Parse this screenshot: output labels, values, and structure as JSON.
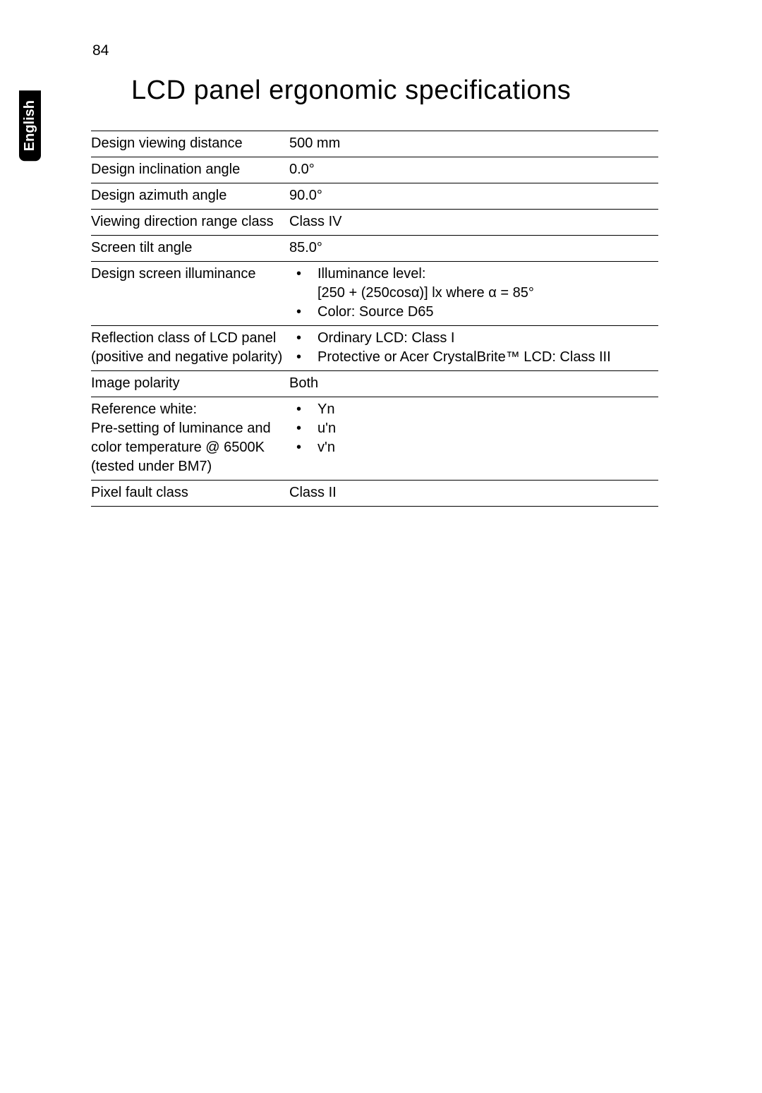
{
  "page_number": "84",
  "language_tab": "English",
  "title": "LCD panel ergonomic specifications",
  "colors": {
    "background": "#ffffff",
    "text": "#000000",
    "tab_bg": "#000000",
    "tab_text": "#ffffff",
    "border": "#000000"
  },
  "typography": {
    "title_fontsize": 38,
    "body_fontsize": 20,
    "tab_fontsize": 20,
    "page_number_fontsize": 21
  },
  "rows": [
    {
      "label": "Design viewing distance",
      "value_type": "text",
      "value": "500 mm"
    },
    {
      "label": "Design inclination angle",
      "value_type": "text",
      "value": "0.0°"
    },
    {
      "label": "Design azimuth angle",
      "value_type": "text",
      "value": "90.0°"
    },
    {
      "label": "Viewing direction range class",
      "value_type": "text",
      "value": "Class IV"
    },
    {
      "label": "Screen tilt angle",
      "value_type": "text",
      "value": "85.0°"
    },
    {
      "label": "Design screen illuminance",
      "value_type": "bullets",
      "bullets": [
        {
          "text": "Illuminance level:",
          "sub": "[250 + (250cosα)] lx where α = 85°"
        },
        {
          "text": "Color: Source D65"
        }
      ]
    },
    {
      "label": "Reflection class of LCD panel (positive and negative polarity)",
      "value_type": "bullets",
      "bullets": [
        {
          "text": "Ordinary LCD: Class I"
        },
        {
          "text": "Protective or Acer CrystalBrite™ LCD: Class III"
        }
      ]
    },
    {
      "label": "Image polarity",
      "value_type": "text",
      "value": "Both"
    },
    {
      "label": "Reference white:\nPre-setting of luminance and color temperature @ 6500K (tested under BM7)",
      "value_type": "bullets",
      "bullets": [
        {
          "text": "Yn"
        },
        {
          "text": "u'n"
        },
        {
          "text": "v'n"
        }
      ]
    },
    {
      "label": "Pixel fault class",
      "value_type": "text",
      "value": "Class II"
    }
  ]
}
